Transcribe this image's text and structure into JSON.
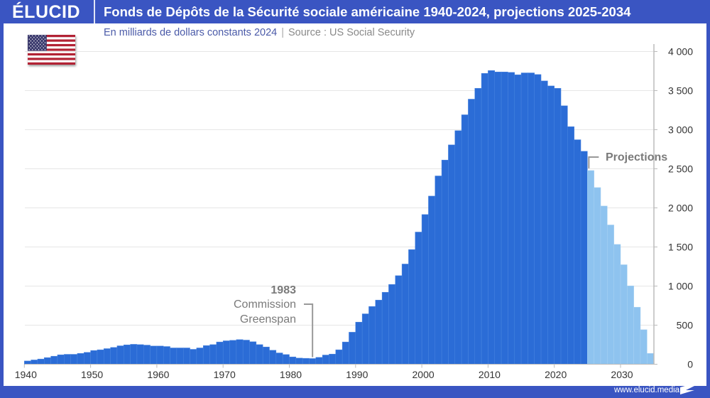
{
  "header": {
    "logo": "ÉLUCID",
    "title": "Fonds de Dépôts de la Sécurité sociale américaine 1940-2024, projections 2025-2034"
  },
  "subtitle": {
    "unit": "En milliards de dollars constants 2024",
    "source": "Source : US Social Security"
  },
  "flag_icon": "us-flag",
  "footer": {
    "url": "www.elucid.media"
  },
  "colors": {
    "brand": "#3a55c2",
    "historical": "#2b6cd6",
    "projection": "#8ec3ef",
    "annotation": "#7a7a7a"
  },
  "chart_data": {
    "type": "bar",
    "title": "Fonds de Dépôts de la Sécurité sociale américaine 1940-2024, projections 2025-2034",
    "ylabel": "",
    "xlabel": "",
    "ylim": [
      0,
      4000
    ],
    "xlim": [
      1940,
      2034
    ],
    "grid": true,
    "y_axis_position": "right",
    "x_ticks": [
      "1940",
      "1950",
      "1960",
      "1970",
      "1980",
      "1990",
      "2000",
      "2010",
      "2020",
      "2030"
    ],
    "y_ticks": [
      "0",
      "500",
      "1 000",
      "1 500",
      "2 000",
      "2 500",
      "3 000",
      "3 500",
      "4 000"
    ],
    "series": [
      {
        "type": "historical",
        "x": [
          1940,
          1941,
          1942,
          1943,
          1944,
          1945,
          1946,
          1947,
          1948,
          1949,
          1950,
          1951,
          1952,
          1953,
          1954,
          1955,
          1956,
          1957,
          1958,
          1959,
          1960,
          1961,
          1962,
          1963,
          1964,
          1965,
          1966,
          1967,
          1968,
          1969,
          1970,
          1971,
          1972,
          1973,
          1974,
          1975,
          1976,
          1977,
          1978,
          1979,
          1980,
          1981,
          1982,
          1983,
          1984,
          1985,
          1986,
          1987,
          1988,
          1989,
          1990,
          1991,
          1992,
          1993,
          1994,
          1995,
          1996,
          1997,
          1998,
          1999,
          2000,
          2001,
          2002,
          2003,
          2004,
          2005,
          2006,
          2007,
          2008,
          2009,
          2010,
          2011,
          2012,
          2013,
          2014,
          2015,
          2016,
          2017,
          2018,
          2019,
          2020,
          2021,
          2022,
          2023,
          2024
        ],
        "values": [
          42,
          55,
          67,
          85,
          103,
          121,
          127,
          127,
          139,
          152,
          176,
          185,
          200,
          215,
          236,
          248,
          255,
          251,
          245,
          233,
          233,
          227,
          209,
          209,
          209,
          191,
          209,
          239,
          251,
          285,
          300,
          306,
          315,
          309,
          288,
          251,
          221,
          179,
          145,
          124,
          94,
          79,
          76,
          73,
          88,
          118,
          130,
          185,
          285,
          410,
          539,
          645,
          739,
          821,
          921,
          1021,
          1133,
          1282,
          1467,
          1691,
          1915,
          2151,
          2409,
          2612,
          2806,
          2988,
          3191,
          3391,
          3530,
          3721,
          3757,
          3739,
          3739,
          3733,
          3703,
          3727,
          3727,
          3706,
          3624,
          3560,
          3530,
          3306,
          3039,
          2872,
          2724
        ]
      },
      {
        "type": "projection",
        "x": [
          2025,
          2026,
          2027,
          2028,
          2029,
          2030,
          2031,
          2032,
          2033,
          2034
        ],
        "values": [
          2478,
          2260,
          2024,
          1782,
          1533,
          1273,
          1003,
          730,
          442,
          139
        ]
      }
    ],
    "annotations": [
      {
        "year": "1983",
        "line1": "Commission",
        "line2": "Greenspan",
        "x": 1983
      },
      {
        "text": "Projections",
        "x": 2025
      }
    ]
  }
}
